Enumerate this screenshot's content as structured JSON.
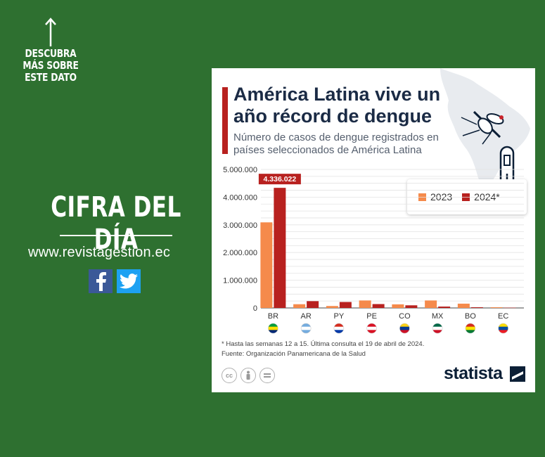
{
  "left": {
    "more_info": "DESCUBRA MÁS SOBRE ESTE DATO",
    "headline": "CIFRA DEL DÍA",
    "url": "www.revistagestion.ec",
    "social": [
      {
        "name": "facebook",
        "glyph": "f",
        "color": "#3b5998"
      },
      {
        "name": "twitter",
        "glyph": "bird",
        "color": "#1da1f2"
      }
    ]
  },
  "card": {
    "brand": "statista",
    "footnote_1": "* Hasta las semanas 12 a 15. Última consulta el 19 de abril de 2024.",
    "footnote_2": "Fuente: Organización Panamericana de la Salud",
    "license_icons": [
      "cc-icon",
      "by-icon",
      "nd-icon"
    ]
  },
  "chart_data": {
    "type": "bar",
    "title": "América Latina vive un año récord de dengue",
    "subtitle": "Número de casos de dengue registrados en países seleccionados de América Latina",
    "categories": [
      "BR",
      "AR",
      "PY",
      "PE",
      "CO",
      "MX",
      "BO",
      "EC"
    ],
    "flags": [
      {
        "colors": [
          "#009c3b",
          "#ffdf00",
          "#002776"
        ]
      },
      {
        "colors": [
          "#74acdf",
          "#ffffff",
          "#74acdf"
        ]
      },
      {
        "colors": [
          "#d52b1e",
          "#ffffff",
          "#0038a8"
        ]
      },
      {
        "colors": [
          "#d91023",
          "#ffffff",
          "#d91023"
        ]
      },
      {
        "colors": [
          "#fcd116",
          "#003893",
          "#ce1126"
        ]
      },
      {
        "colors": [
          "#006847",
          "#ffffff",
          "#ce1126"
        ]
      },
      {
        "colors": [
          "#d52b1e",
          "#f9e300",
          "#007934"
        ]
      },
      {
        "colors": [
          "#ffdd00",
          "#034ea2",
          "#ed1c24"
        ]
      }
    ],
    "series": [
      {
        "name": "2023",
        "color": "#f58a4b",
        "values": [
          3090000,
          135000,
          70000,
          270000,
          130000,
          270000,
          155000,
          25000
        ]
      },
      {
        "name": "2024*",
        "color": "#b8211f",
        "values": [
          4336022,
          245000,
          215000,
          140000,
          95000,
          50000,
          25000,
          10000
        ]
      }
    ],
    "highlight_label": "4.336.022",
    "yticks": [
      "0",
      "1.000.000",
      "2.000.000",
      "3.000.000",
      "4.000.000",
      "5.000.000"
    ],
    "ylim": [
      0,
      5000000
    ],
    "grid": true,
    "legend_position": "top-right"
  }
}
